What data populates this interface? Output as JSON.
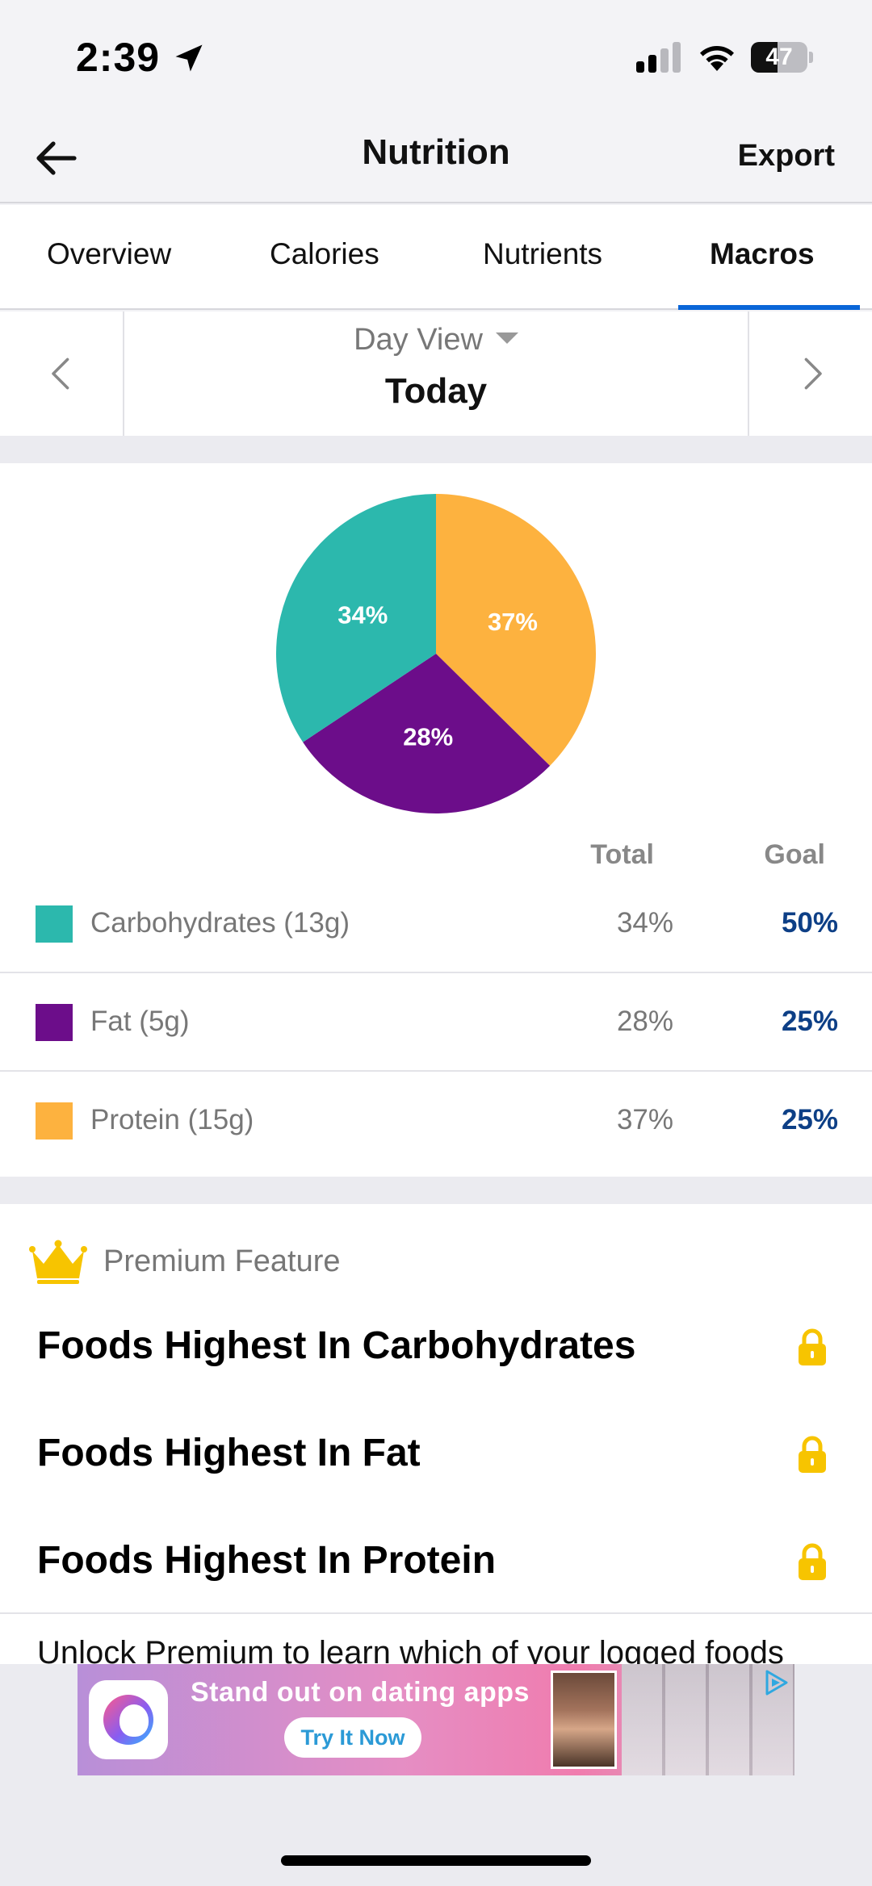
{
  "status_bar": {
    "time": "2:39",
    "battery": "47",
    "battery_level": 0.47
  },
  "nav": {
    "title": "Nutrition",
    "export_label": "Export"
  },
  "tabs": [
    {
      "label": "Overview",
      "active": false
    },
    {
      "label": "Calories",
      "active": false
    },
    {
      "label": "Nutrients",
      "active": false
    },
    {
      "label": "Macros",
      "active": true
    }
  ],
  "date_selector": {
    "view_label": "Day View",
    "date_label": "Today"
  },
  "colors": {
    "carbs": "#2cb8ad",
    "fat": "#6c0d8a",
    "protein": "#fdb23f",
    "goal_text": "#0d3f86",
    "accent": "#0a66d8"
  },
  "chart_data": {
    "type": "pie",
    "slices": [
      {
        "label": "Protein",
        "value": 37,
        "display": "37%",
        "color": "#fdb23f"
      },
      {
        "label": "Fat",
        "value": 28,
        "display": "28%",
        "color": "#6c0d8a"
      },
      {
        "label": "Carbohydrates",
        "value": 34,
        "display": "34%",
        "color": "#2cb8ad"
      }
    ]
  },
  "macro_table": {
    "header_total": "Total",
    "header_goal": "Goal",
    "rows": [
      {
        "label": "Carbohydrates (13g)",
        "total": "34%",
        "goal": "50%",
        "color": "#2cb8ad"
      },
      {
        "label": "Fat (5g)",
        "total": "28%",
        "goal": "25%",
        "color": "#6c0d8a"
      },
      {
        "label": "Protein (15g)",
        "total": "37%",
        "goal": "25%",
        "color": "#fdb23f"
      }
    ]
  },
  "premium": {
    "label": "Premium Feature",
    "items": [
      {
        "title": "Foods Highest In Carbohydrates"
      },
      {
        "title": "Foods Highest In Fat"
      },
      {
        "title": "Foods Highest In Protein"
      }
    ],
    "unlock_text": "Unlock Premium to learn which of your logged foods"
  },
  "ad": {
    "headline": "Stand out on dating apps",
    "cta": "Try It Now"
  }
}
